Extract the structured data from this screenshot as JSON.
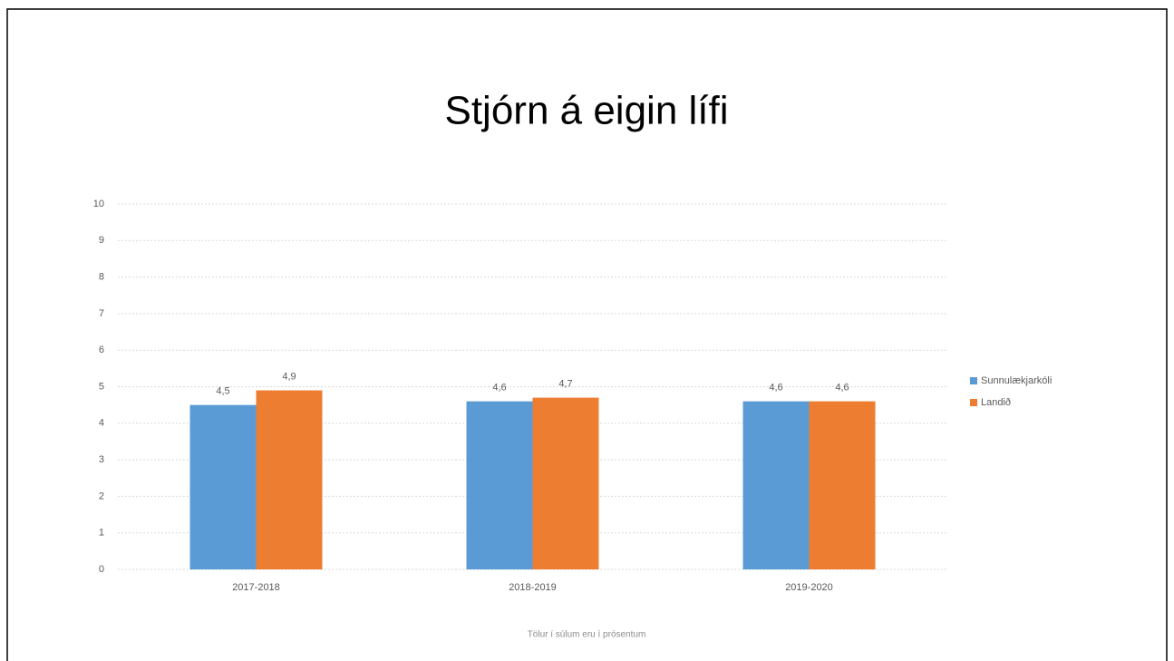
{
  "chart_data": {
    "type": "bar",
    "title": "Stjórn á eigin lífi",
    "categories": [
      "2017-2018",
      "2018-2019",
      "2019-2020"
    ],
    "series": [
      {
        "name": "Sunnulækjarkóli",
        "color": "#5b9bd5",
        "values": [
          4.5,
          4.6,
          4.6
        ],
        "value_labels": [
          "4,5",
          "4,6",
          "4,6"
        ]
      },
      {
        "name": "Landið",
        "color": "#ed7d31",
        "values": [
          4.9,
          4.7,
          4.6
        ],
        "value_labels": [
          "4,9",
          "4,7",
          "4,6"
        ]
      }
    ],
    "ylim": [
      0,
      10
    ],
    "yticks": [
      0,
      1,
      2,
      3,
      4,
      5,
      6,
      7,
      8,
      9,
      10
    ],
    "grid": true,
    "legend": "right",
    "note": "Tölur í súlum eru í prósentum"
  }
}
